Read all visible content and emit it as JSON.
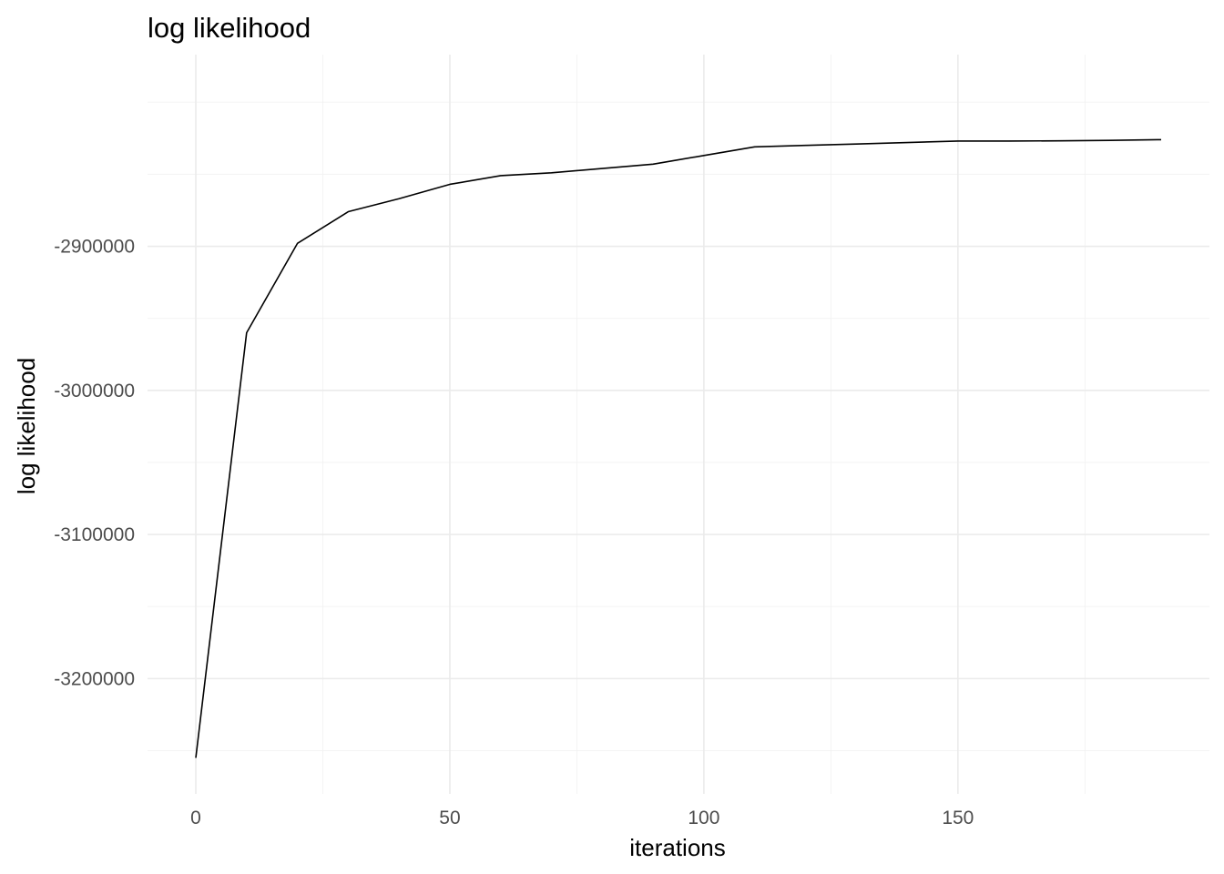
{
  "chart_data": {
    "type": "line",
    "title": "log likelihood",
    "xlabel": "iterations",
    "ylabel": "log likelihood",
    "xlim": [
      -9.5,
      199.5
    ],
    "ylim": [
      -3280000,
      -2767000
    ],
    "x_ticks": [
      0,
      50,
      100,
      150
    ],
    "x_tick_labels": [
      "0",
      "50",
      "100",
      "150"
    ],
    "x_minor_ticks": [
      25,
      75,
      125,
      175
    ],
    "y_ticks": [
      -3200000,
      -3100000,
      -3000000,
      -2900000
    ],
    "y_tick_labels": [
      "-3200000",
      "-3100000",
      "-3000000",
      "-2900000"
    ],
    "y_minor_ticks": [
      -3250000,
      -3150000,
      -3050000,
      -2950000,
      -2850000,
      -2800000
    ],
    "grid": true,
    "legend": "none",
    "line_color": "#000000",
    "x": [
      0,
      10,
      20,
      30,
      40,
      50,
      60,
      70,
      80,
      90,
      100,
      110,
      120,
      130,
      140,
      150,
      160,
      170,
      180,
      190
    ],
    "y": [
      -3255000,
      -2960000,
      -2898000,
      -2876000,
      -2867000,
      -2857000,
      -2851000,
      -2849000,
      -2846000,
      -2843000,
      -2837000,
      -2831000,
      -2830000,
      -2829000,
      -2828000,
      -2827000,
      -2827000,
      -2826800,
      -2826500,
      -2826000
    ]
  }
}
